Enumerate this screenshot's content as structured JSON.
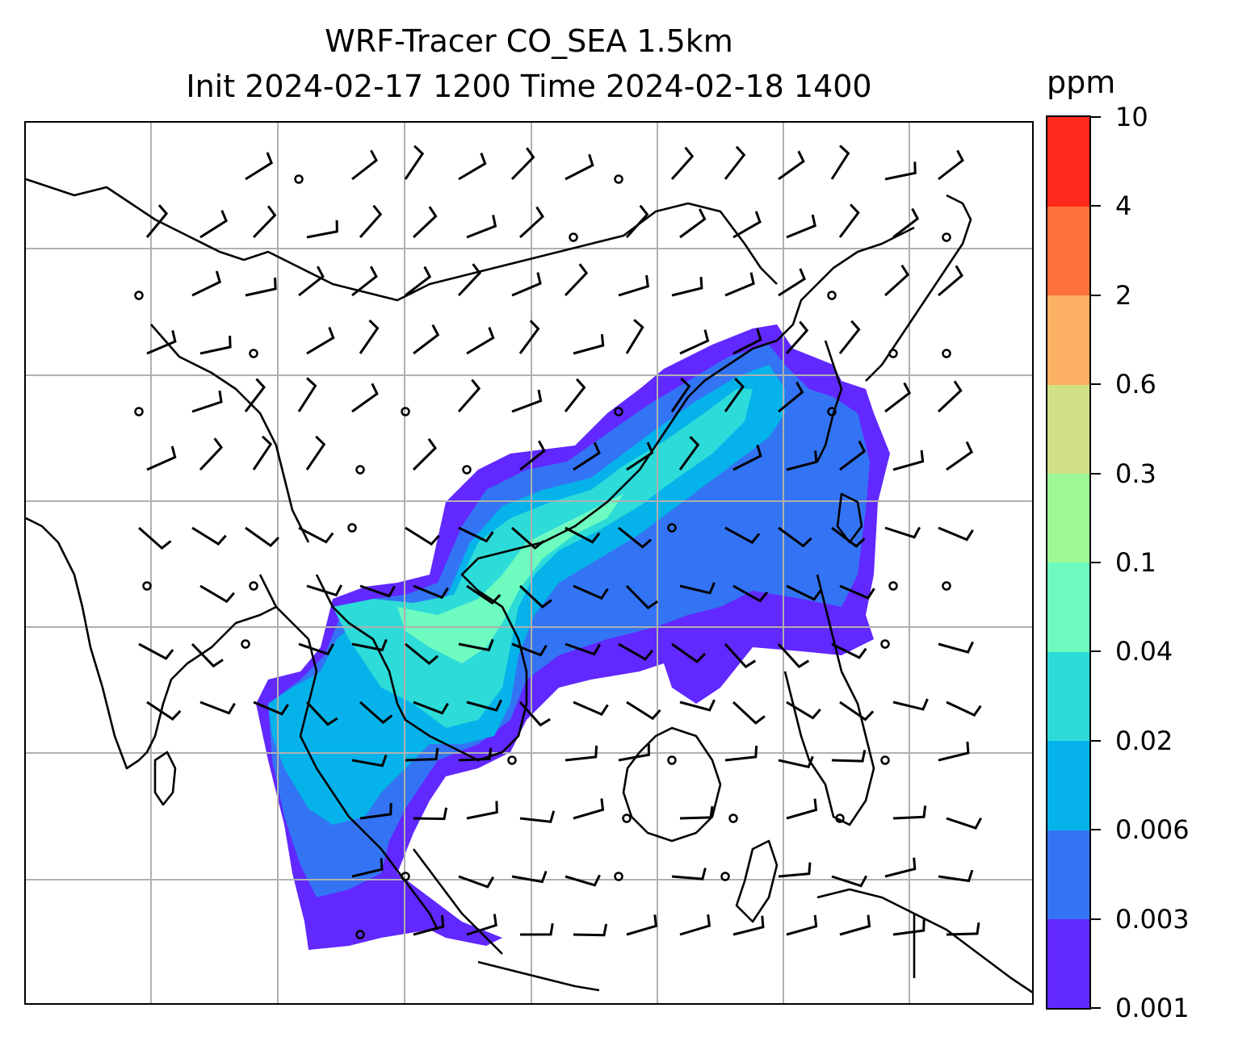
{
  "title": {
    "line1": "WRF-Tracer CO_SEA 1.5km",
    "line2": "Init 2024-02-17 1200 Time 2024-02-18 1400"
  },
  "colorbar": {
    "unit": "ppm",
    "levels": [
      "0.001",
      "0.003",
      "0.006",
      "0.02",
      "0.04",
      "0.1",
      "0.3",
      "0.6",
      "2",
      "4",
      "10"
    ],
    "colors": [
      "#6128ff",
      "#3374f4",
      "#05b3ea",
      "#2ddbd9",
      "#6dfbbf",
      "#9ef895",
      "#d1e085",
      "#fcb063",
      "#ff713a",
      "#ff2a1b"
    ]
  },
  "map": {
    "gridlines": true,
    "grid_color": "#b0b0b0",
    "coastline_color": "#000000",
    "wind_barbs": "black",
    "calm_marker": "circle"
  }
}
